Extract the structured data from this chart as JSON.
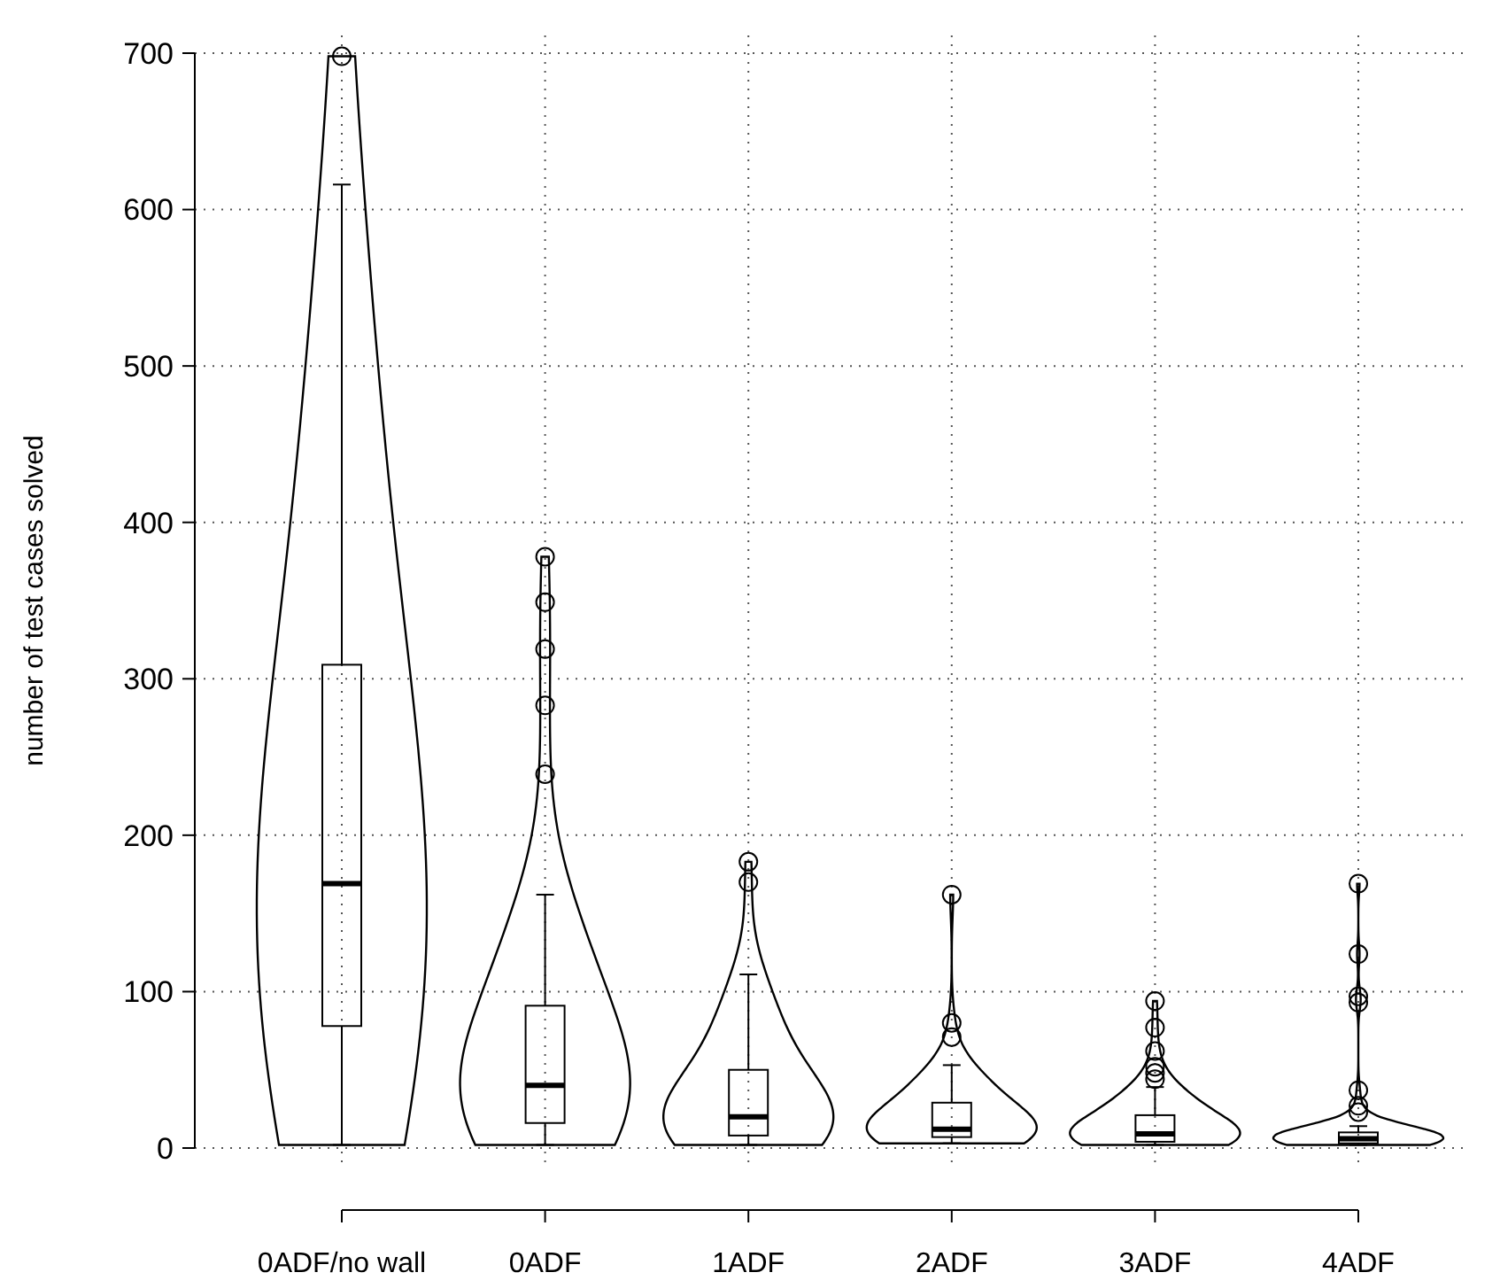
{
  "chart_data": {
    "type": "box",
    "ylabel": "number of test cases solved",
    "categories": [
      "0ADF/no wall",
      "0ADF",
      "1ADF",
      "2ADF",
      "3ADF",
      "4ADF"
    ],
    "boxes": [
      {
        "low": 2,
        "q1": 78,
        "median": 169,
        "q3": 309,
        "high": 616,
        "outliers": [
          698
        ]
      },
      {
        "low": 2,
        "q1": 16,
        "median": 40,
        "q3": 91,
        "high": 162,
        "outliers": [
          239,
          283,
          319,
          349,
          378
        ]
      },
      {
        "low": 2,
        "q1": 8,
        "median": 20,
        "q3": 50,
        "high": 111,
        "outliers": [
          170,
          183
        ]
      },
      {
        "low": 3,
        "q1": 7,
        "median": 12,
        "q3": 29,
        "high": 53,
        "outliers": [
          71,
          80,
          162
        ]
      },
      {
        "low": 2,
        "q1": 4,
        "median": 9,
        "q3": 21,
        "high": 39,
        "outliers": [
          44,
          48,
          52,
          62,
          77,
          94
        ]
      },
      {
        "low": 2,
        "q1": 3,
        "median": 6,
        "q3": 10,
        "high": 14,
        "outliers": [
          23,
          27,
          37,
          93,
          97,
          124,
          169
        ]
      }
    ],
    "ylim": [
      0,
      700
    ],
    "yticks": [
      0,
      100,
      200,
      300,
      400,
      500,
      600,
      700
    ],
    "grid": true
  }
}
